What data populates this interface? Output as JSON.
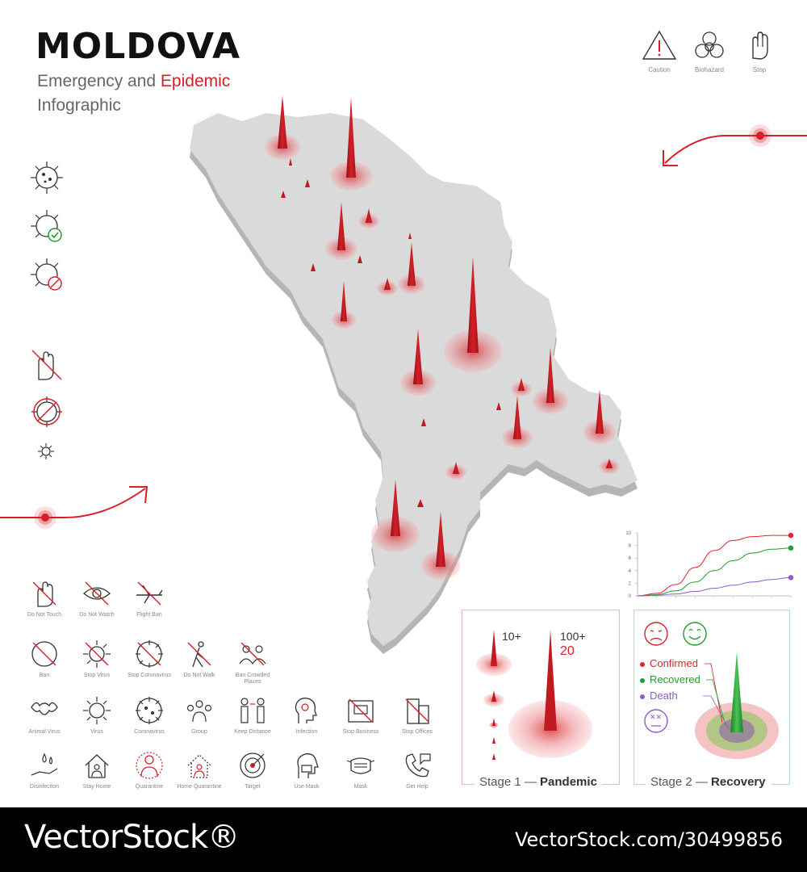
{
  "header": {
    "title": "MOLDOVA",
    "subtitle_part1": "Emergency and ",
    "subtitle_part2": "Epidemic",
    "subtitle_line2": "Infographic"
  },
  "top_icons": [
    {
      "icon": "caution-icon",
      "label": "Caution"
    },
    {
      "icon": "biohazard-icon",
      "label": "Biohazard"
    },
    {
      "icon": "stop-hand-icon",
      "label": "Stop"
    }
  ],
  "icon_grid": [
    {
      "icon": "do-not-touch-icon",
      "label": "Do Not Touch"
    },
    {
      "icon": "do-not-watch-icon",
      "label": "Do Not Watch"
    },
    {
      "icon": "flight-ban-icon",
      "label": "Flight Ban"
    },
    {
      "icon": "ban-icon",
      "label": "Ban"
    },
    {
      "icon": "stop-virus-icon",
      "label": "Stop Virus"
    },
    {
      "icon": "stop-coronavirus-icon",
      "label": "Stop Coronavirus"
    },
    {
      "icon": "do-not-walk-icon",
      "label": "Do Not Walk"
    },
    {
      "icon": "ban-crowded-places-icon",
      "label": "Ban Crowded Places"
    },
    {
      "icon": "animal-virus-icon",
      "label": "Animal Virus"
    },
    {
      "icon": "virus-icon",
      "label": "Virus"
    },
    {
      "icon": "coronavirus-icon",
      "label": "Coronavirus"
    },
    {
      "icon": "group-icon",
      "label": "Group"
    },
    {
      "icon": "keep-distance-icon",
      "label": "Keep Distance"
    },
    {
      "icon": "infection-icon",
      "label": "Infection"
    },
    {
      "icon": "stop-business-icon",
      "label": "Stop Business"
    },
    {
      "icon": "stop-offices-icon",
      "label": "Stop Offices"
    },
    {
      "icon": "disinfection-icon",
      "label": "Disinfection"
    },
    {
      "icon": "stay-home-icon",
      "label": "Stay Home"
    },
    {
      "icon": "quarantine-icon",
      "label": "Quarantine"
    },
    {
      "icon": "home-quarantine-icon",
      "label": "Home Quarantine"
    },
    {
      "icon": "target-icon",
      "label": "Target"
    },
    {
      "icon": "use-mask-icon",
      "label": "Use Mask"
    },
    {
      "icon": "mask-icon",
      "label": "Mask"
    },
    {
      "icon": "get-help-icon",
      "label": "Get Help"
    }
  ],
  "stage1": {
    "label_prefix": "Stage 1 — ",
    "label_bold": "Pandemic",
    "small_value": "10+",
    "big_value": "100+",
    "big_count": "20",
    "color": "#d62027"
  },
  "stage2": {
    "label_prefix": "Stage 2 — ",
    "label_bold": "Recovery",
    "legend": [
      {
        "name": "Confirmed",
        "color": "#e0242b"
      },
      {
        "name": "Recovered",
        "color": "#1e9e2b"
      },
      {
        "name": "Death",
        "color": "#8e5bd0"
      }
    ]
  },
  "chart_data": {
    "type": "line",
    "x": [
      0,
      1,
      2,
      3,
      4,
      5,
      6,
      7,
      8
    ],
    "series": [
      {
        "values": [
          0,
          0.4,
          1.8,
          4.5,
          7.2,
          8.8,
          9.4,
          9.6,
          9.6
        ],
        "color": "#e0242b"
      },
      {
        "values": [
          0,
          0.2,
          0.8,
          2.2,
          4.0,
          5.6,
          6.8,
          7.4,
          7.6
        ],
        "color": "#1e9e2b"
      },
      {
        "values": [
          0,
          0.1,
          0.3,
          0.7,
          1.2,
          1.7,
          2.2,
          2.6,
          2.9
        ],
        "color": "#8e5bd0"
      }
    ],
    "yticks": [
      "0",
      "2",
      "4",
      "6",
      "8",
      "10"
    ],
    "ylim": [
      0,
      10
    ],
    "grid": false
  },
  "footer": {
    "brand": "VectorStock®",
    "site": "VectorStock.com/30499856"
  },
  "colors": {
    "accent": "#d62027",
    "map": "#d9d9d9",
    "map_side": "#b0b0b0"
  }
}
